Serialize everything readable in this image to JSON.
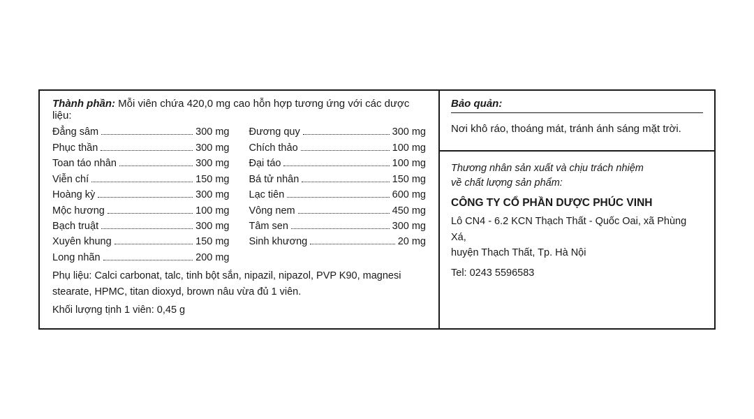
{
  "colors": {
    "border": "#1a1a1a",
    "text": "#1a1a1a",
    "background": "#ffffff"
  },
  "composition": {
    "heading_label": "Thành phần:",
    "heading_text": " Mỗi viên chứa 420,0 mg cao hỗn hợp tương ứng với các dược liệu:",
    "col_left": [
      {
        "name": "Đẳng sâm",
        "amount": "300 mg"
      },
      {
        "name": "Phục thần",
        "amount": "300 mg"
      },
      {
        "name": "Toan táo nhân",
        "amount": "300 mg"
      },
      {
        "name": "Viễn chí",
        "amount": "150 mg"
      },
      {
        "name": "Hoàng kỳ",
        "amount": "300 mg"
      },
      {
        "name": "Mộc hương",
        "amount": "100 mg"
      },
      {
        "name": "Bạch truật",
        "amount": "300 mg"
      },
      {
        "name": "Xuyên khung",
        "amount": "150 mg"
      },
      {
        "name": "Long nhãn",
        "amount": "200 mg"
      }
    ],
    "col_right": [
      {
        "name": "Đương quy",
        "amount": "300 mg"
      },
      {
        "name": "Chích thảo",
        "amount": "100 mg"
      },
      {
        "name": "Đại táo",
        "amount": "100 mg"
      },
      {
        "name": "Bá tử nhân",
        "amount": "150 mg"
      },
      {
        "name": "Lạc tiên",
        "amount": "600 mg"
      },
      {
        "name": "Vông nem",
        "amount": "450 mg"
      },
      {
        "name": "Tâm sen",
        "amount": "300 mg"
      },
      {
        "name": "Sinh khương",
        "amount": "20 mg"
      }
    ],
    "excipients": "Phụ liệu: Calci carbonat, talc, tinh bột sắn, nipazil, nipazol, PVP K90, magnesi stearate, HPMC, titan dioxyd, brown nâu vừa đủ 1 viên.",
    "weight": "Khối lượng tịnh 1 viên: 0,45 g"
  },
  "storage": {
    "heading": "Bảo quản:",
    "text": "Nơi khô ráo, thoáng mát, tránh ánh sáng mặt trời."
  },
  "company": {
    "intro_line1": "Thương nhân sản xuất và chịu trách nhiệm",
    "intro_line2": "về chất lượng sản phẩm:",
    "name": "CÔNG TY CỔ PHẦN DƯỢC PHÚC VINH",
    "addr1": "Lô CN4 - 6.2 KCN Thạch Thất - Quốc Oai, xã Phùng Xá,",
    "addr2": "huyện Thạch Thất, Tp. Hà Nội",
    "tel": "Tel: 0243 5596583"
  }
}
